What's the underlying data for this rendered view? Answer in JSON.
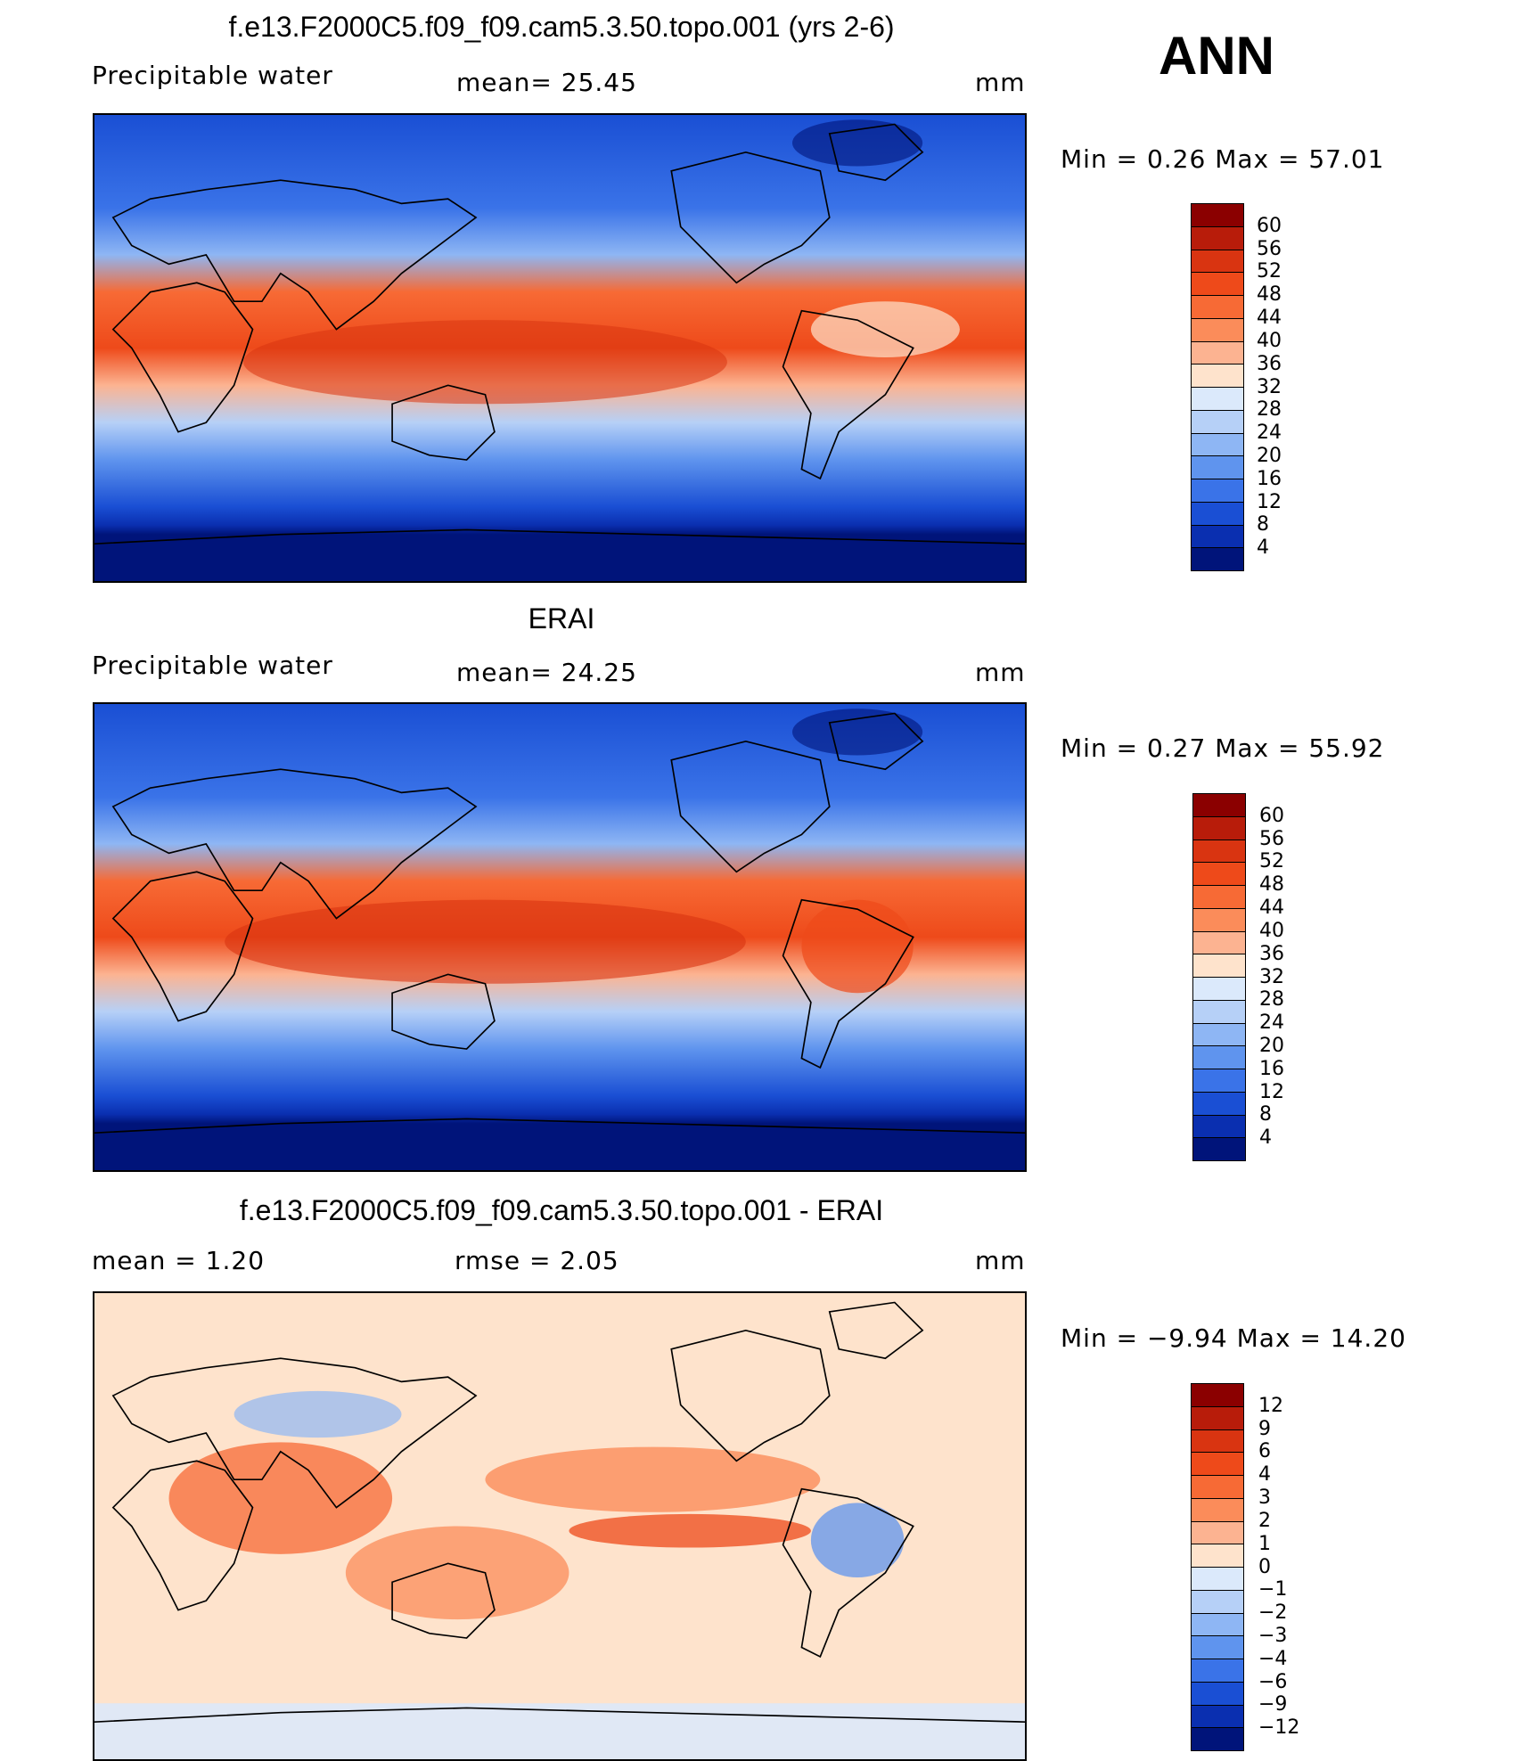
{
  "season": "ANN",
  "panels": [
    {
      "title": "f.e13.F2000C5.f09_f09.cam5.3.50.topo.001 (yrs 2-6)",
      "left_label": "Precipitable  water",
      "mid_label": "mean=   25.45",
      "units": "mm",
      "minmax": "Min  =     0.26  Max  =     57.01",
      "colorbar": {
        "labels": [
          "60",
          "56",
          "52",
          "48",
          "44",
          "40",
          "36",
          "32",
          "28",
          "24",
          "20",
          "16",
          "12",
          "8",
          "4"
        ],
        "colors": [
          "#8b0000",
          "#b81c0a",
          "#d93411",
          "#ee4a1a",
          "#f76a35",
          "#fb8c5a",
          "#fcb391",
          "#fee3cc",
          "#dbe9fb",
          "#b6d0f7",
          "#8eb6f4",
          "#5f94ee",
          "#3a73e8",
          "#1a4fd4",
          "#0a2fb0",
          "#00147a"
        ]
      }
    },
    {
      "title": "ERAI",
      "left_label": "Precipitable  water",
      "mid_label": "mean=   24.25",
      "units": "mm",
      "minmax": "Min  =     0.27  Max  =     55.92",
      "colorbar": {
        "labels": [
          "60",
          "56",
          "52",
          "48",
          "44",
          "40",
          "36",
          "32",
          "28",
          "24",
          "20",
          "16",
          "12",
          "8",
          "4"
        ],
        "colors": [
          "#8b0000",
          "#b81c0a",
          "#d93411",
          "#ee4a1a",
          "#f76a35",
          "#fb8c5a",
          "#fcb391",
          "#fee3cc",
          "#dbe9fb",
          "#b6d0f7",
          "#8eb6f4",
          "#5f94ee",
          "#3a73e8",
          "#1a4fd4",
          "#0a2fb0",
          "#00147a"
        ]
      }
    },
    {
      "title": "f.e13.F2000C5.f09_f09.cam5.3.50.topo.001 - ERAI",
      "left_label": "mean  =     1.20",
      "mid_label": "rmse  =     2.05",
      "units": "mm",
      "minmax": "Min  =   −9.94  Max  =     14.20",
      "colorbar": {
        "labels": [
          "12",
          "9",
          "6",
          "4",
          "3",
          "2",
          "1",
          "0",
          "−1",
          "−2",
          "−3",
          "−4",
          "−6",
          "−9",
          "−12"
        ],
        "colors": [
          "#8b0000",
          "#b81c0a",
          "#d93411",
          "#ee4a1a",
          "#f76a35",
          "#fb8c5a",
          "#fcb391",
          "#fee3cc",
          "#dbe9fb",
          "#b6d0f7",
          "#8eb6f4",
          "#5f94ee",
          "#3a73e8",
          "#1a4fd4",
          "#0a2fb0",
          "#00147a"
        ]
      }
    }
  ]
}
